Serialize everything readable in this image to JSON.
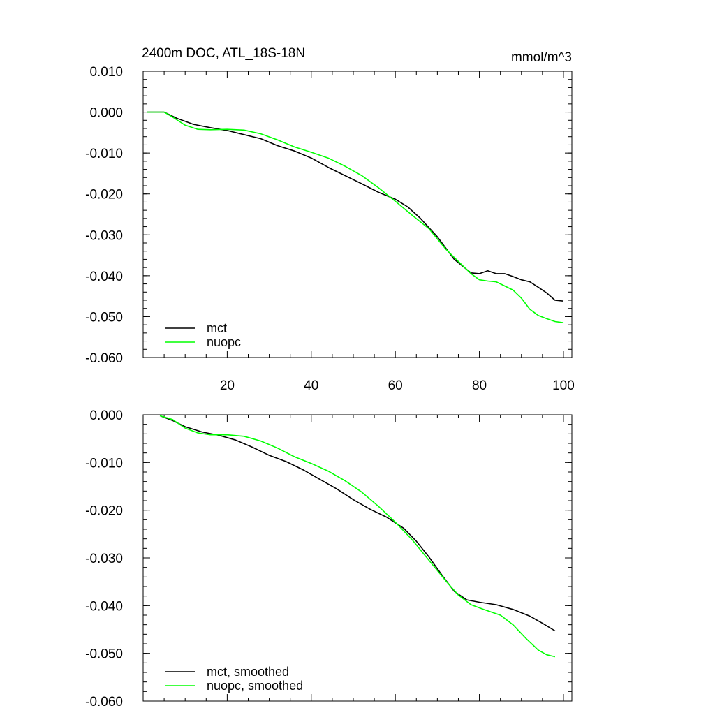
{
  "chart_data": [
    {
      "type": "line",
      "title": "2400m DOC, ATL_18S-18N",
      "units": "mmol/m^3",
      "xlim": [
        0,
        102
      ],
      "ylim": [
        -0.06,
        0.01
      ],
      "xticks": [
        20,
        40,
        60,
        80,
        100
      ],
      "xtick_labels": [
        "20",
        "40",
        "60",
        "80",
        "100"
      ],
      "yticks": [
        0.01,
        0.0,
        -0.01,
        -0.02,
        -0.03,
        -0.04,
        -0.05,
        -0.06
      ],
      "ytick_labels": [
        "0.010",
        "0.000",
        "-0.010",
        "-0.020",
        "-0.030",
        "-0.040",
        "-0.050",
        "-0.060"
      ],
      "legend_location": "bottom-left",
      "series": [
        {
          "name": "mct",
          "color": "#000000",
          "x": [
            1,
            5,
            8,
            12,
            16,
            20,
            24,
            28,
            32,
            36,
            40,
            44,
            48,
            52,
            56,
            60,
            63,
            66,
            70,
            74,
            78,
            80,
            82,
            84,
            86,
            88,
            90,
            92,
            94,
            96,
            98,
            100
          ],
          "y": [
            0.0,
            0.0,
            -0.0015,
            -0.003,
            -0.0038,
            -0.0045,
            -0.0055,
            -0.0065,
            -0.0082,
            -0.0095,
            -0.0112,
            -0.0135,
            -0.0155,
            -0.0175,
            -0.0196,
            -0.0213,
            -0.0232,
            -0.026,
            -0.0305,
            -0.036,
            -0.0393,
            -0.0395,
            -0.0388,
            -0.0395,
            -0.0395,
            -0.0402,
            -0.041,
            -0.0415,
            -0.0428,
            -0.0442,
            -0.046,
            -0.0462
          ]
        },
        {
          "name": "nuopc",
          "color": "#00ff00",
          "x": [
            1,
            5,
            7,
            10,
            13,
            16,
            20,
            24,
            28,
            32,
            36,
            40,
            44,
            48,
            52,
            56,
            60,
            64,
            68,
            72,
            75,
            78,
            80,
            82,
            84,
            86,
            88,
            90,
            92,
            94,
            96,
            98,
            100
          ],
          "y": [
            0.0,
            0.0,
            -0.0012,
            -0.0032,
            -0.0042,
            -0.0043,
            -0.0042,
            -0.0044,
            -0.0053,
            -0.0068,
            -0.0085,
            -0.0098,
            -0.0112,
            -0.0132,
            -0.0155,
            -0.0185,
            -0.0218,
            -0.0252,
            -0.0285,
            -0.0335,
            -0.0365,
            -0.0395,
            -0.041,
            -0.0413,
            -0.0415,
            -0.0425,
            -0.0435,
            -0.0455,
            -0.0482,
            -0.0497,
            -0.0505,
            -0.0512,
            -0.0515
          ]
        }
      ]
    },
    {
      "type": "line",
      "title": "",
      "xlim": [
        0,
        102
      ],
      "ylim": [
        -0.06,
        0.0
      ],
      "xticks": [
        20,
        40,
        60,
        80,
        100
      ],
      "xtick_labels": [],
      "yticks": [
        0.0,
        -0.01,
        -0.02,
        -0.03,
        -0.04,
        -0.05,
        -0.06
      ],
      "ytick_labels": [
        "0.000",
        "-0.010",
        "-0.020",
        "-0.030",
        "-0.040",
        "-0.050",
        "-0.060"
      ],
      "legend_location": "bottom-left",
      "series": [
        {
          "name": "mct, smoothed",
          "color": "#000000",
          "x": [
            4,
            7,
            10,
            14,
            18,
            22,
            26,
            30,
            34,
            38,
            42,
            46,
            50,
            54,
            58,
            62,
            65,
            68,
            71,
            74,
            77,
            80,
            84,
            88,
            92,
            95,
            98
          ],
          "y": [
            -0.0002,
            -0.0012,
            -0.0025,
            -0.0036,
            -0.0043,
            -0.0053,
            -0.0068,
            -0.0085,
            -0.0098,
            -0.0115,
            -0.0135,
            -0.0155,
            -0.0178,
            -0.0198,
            -0.0215,
            -0.0238,
            -0.0265,
            -0.0298,
            -0.0335,
            -0.037,
            -0.0388,
            -0.0393,
            -0.0398,
            -0.0408,
            -0.0422,
            -0.0437,
            -0.0453
          ]
        },
        {
          "name": "nuopc, smoothed",
          "color": "#00ff00",
          "x": [
            4,
            7,
            10,
            13,
            16,
            20,
            24,
            28,
            32,
            36,
            40,
            44,
            48,
            52,
            56,
            60,
            64,
            68,
            72,
            75,
            78,
            81,
            85,
            88,
            91,
            94,
            96,
            98
          ],
          "y": [
            -0.0002,
            -0.001,
            -0.0028,
            -0.0038,
            -0.0042,
            -0.0042,
            -0.0045,
            -0.0055,
            -0.007,
            -0.0088,
            -0.0102,
            -0.0118,
            -0.0138,
            -0.0162,
            -0.0192,
            -0.0225,
            -0.0262,
            -0.0305,
            -0.0348,
            -0.0378,
            -0.0398,
            -0.0408,
            -0.042,
            -0.044,
            -0.0468,
            -0.0493,
            -0.0503,
            -0.0507
          ]
        }
      ]
    }
  ]
}
